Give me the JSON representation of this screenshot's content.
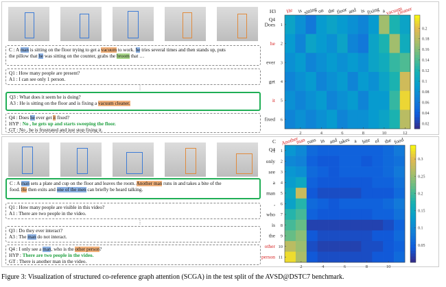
{
  "panels": [
    {
      "boxes": [
        {
          "highlight": false,
          "lines": [
            [
              {
                "text": "C : A "
              },
              {
                "text": "man",
                "style": "blue"
              },
              {
                "text": " is sitting on the floor trying to get a "
              },
              {
                "text": "vacuum",
                "style": "orange"
              },
              {
                "text": " to work. "
              },
              {
                "text": "he",
                "style": "blue"
              },
              {
                "text": " tries several times and then stands up, puts"
              }
            ],
            [
              {
                "text": "the pillow that "
              },
              {
                "text": "he",
                "style": "blue"
              },
              {
                "text": " was sitting on the counter, grabs the "
              },
              {
                "text": "broom",
                "style": "green"
              },
              {
                "text": " that …"
              }
            ]
          ]
        },
        {
          "highlight": false,
          "lines": [
            [
              {
                "text": "Q1 : How many people are present?"
              }
            ],
            [
              {
                "text": "A1 : I can see only 1 person."
              }
            ]
          ]
        },
        {
          "highlight": true,
          "lines": [
            [
              {
                "text": "Q3 : What does it seem he is doing?"
              }
            ],
            [
              {
                "text": "A3 : He is sitting on the floor and is fixing a "
              },
              {
                "text": "vacuum cleaner.",
                "style": "orange"
              }
            ]
          ]
        },
        {
          "highlight": false,
          "lines": [
            [
              {
                "text": "Q4 : Does "
              },
              {
                "text": "he",
                "style": "blue"
              },
              {
                "text": " ever get "
              },
              {
                "text": "it",
                "style": "orange"
              },
              {
                "text": " fixed?"
              }
            ],
            [
              {
                "text": "HYP : "
              },
              {
                "text": "No , he gets up and starts sweeping the floor.",
                "style": "green-bold"
              }
            ],
            [
              {
                "text": "GT : No , he is frustrated and just stop fixing it."
              }
            ]
          ]
        }
      ]
    },
    {
      "boxes": [
        {
          "highlight": true,
          "lines": [
            [
              {
                "text": "C : A "
              },
              {
                "text": "man",
                "style": "blue"
              },
              {
                "text": " sets a plate and cup on the floor and leaves the room. "
              },
              {
                "text": "Another man",
                "style": "orange"
              },
              {
                "text": " runs in and takes a bite of the"
              }
            ],
            [
              {
                "text": "food. "
              },
              {
                "text": "He",
                "style": "orange"
              },
              {
                "text": " then exits and "
              },
              {
                "text": "one of the men",
                "style": "blue"
              },
              {
                "text": " can briefly be heard talking."
              }
            ]
          ]
        },
        {
          "highlight": false,
          "lines": [
            [
              {
                "text": "Q1 : How many people are visible in this video?"
              }
            ],
            [
              {
                "text": "A1 : There are two people in the video."
              }
            ]
          ]
        },
        {
          "highlight": false,
          "lines": [
            [
              {
                "text": "Q3 : Do they ever interact?"
              }
            ],
            [
              {
                "text": "A3 : The "
              },
              {
                "text": "man",
                "style": "blue"
              },
              {
                "text": " do not interact."
              }
            ]
          ]
        },
        {
          "highlight": false,
          "lines": [
            [
              {
                "text": "Q4 : I only see a "
              },
              {
                "text": "man",
                "style": "blue"
              },
              {
                "text": ", who is the "
              },
              {
                "text": "other person",
                "style": "orange"
              },
              {
                "text": "?"
              }
            ],
            [
              {
                "text": "HYP : "
              },
              {
                "text": "There are two people in the video.",
                "style": "green-bold"
              }
            ],
            [
              {
                "text": "GT : There is another man in the video."
              }
            ]
          ]
        }
      ]
    }
  ],
  "chart_data": [
    {
      "type": "heatmap",
      "corner_label": "H3",
      "row_header": "Q4",
      "x_labels": [
        "He",
        "is",
        "sitting",
        "on",
        "the",
        "floor",
        "and",
        "is",
        "fixing",
        "a",
        "vacuum",
        "cleaner"
      ],
      "x_label_colors": [
        "#d62020",
        "#222",
        "#222",
        "#222",
        "#222",
        "#222",
        "#222",
        "#222",
        "#222",
        "#222",
        "#d62020",
        "#d62020"
      ],
      "y_labels": [
        "Does",
        "he",
        "ever",
        "get",
        "it",
        "fixed"
      ],
      "y_label_colors": [
        "#222",
        "#d62020",
        "#222",
        "#222",
        "#d62020",
        "#222"
      ],
      "xlim": [
        0.5,
        12.5
      ],
      "xticks": [
        2,
        4,
        6,
        8,
        10,
        12
      ],
      "ylim": [
        0.5,
        6.5
      ],
      "yticks": [
        1,
        2,
        3,
        4,
        5,
        6
      ],
      "zlim": [
        0.01,
        0.225
      ],
      "zticks": [
        0.02,
        0.04,
        0.06,
        0.08,
        0.1,
        0.12,
        0.14,
        0.16,
        0.18,
        0.2
      ],
      "values": [
        [
          0.1,
          0.08,
          0.06,
          0.09,
          0.1,
          0.09,
          0.08,
          0.07,
          0.09,
          0.17,
          0.12,
          0.1
        ],
        [
          0.09,
          0.07,
          0.1,
          0.09,
          0.08,
          0.1,
          0.07,
          0.06,
          0.1,
          0.12,
          0.17,
          0.11
        ],
        [
          0.08,
          0.09,
          0.07,
          0.08,
          0.09,
          0.08,
          0.09,
          0.08,
          0.1,
          0.11,
          0.13,
          0.14
        ],
        [
          0.07,
          0.08,
          0.09,
          0.07,
          0.08,
          0.09,
          0.07,
          0.09,
          0.08,
          0.1,
          0.12,
          0.19
        ],
        [
          0.08,
          0.07,
          0.08,
          0.09,
          0.07,
          0.08,
          0.09,
          0.07,
          0.09,
          0.09,
          0.13,
          0.21
        ],
        [
          0.07,
          0.08,
          0.07,
          0.08,
          0.09,
          0.07,
          0.08,
          0.08,
          0.09,
          0.1,
          0.12,
          0.18
        ]
      ]
    },
    {
      "type": "heatmap",
      "corner_label": "C",
      "row_header": "Q4",
      "x_labels": [
        "Another",
        "man",
        "runs",
        "in",
        "and",
        "takes",
        "a",
        "bite",
        "of",
        "the",
        "food"
      ],
      "x_label_colors": [
        "#d62020",
        "#d62020",
        "#222",
        "#222",
        "#222",
        "#222",
        "#222",
        "#222",
        "#222",
        "#222",
        "#222"
      ],
      "y_labels": [
        "I",
        "only",
        "see",
        "a",
        "man",
        ",",
        "who",
        "is",
        "the",
        "other",
        "person"
      ],
      "y_label_colors": [
        "#222",
        "#222",
        "#222",
        "#222",
        "#222",
        "#222",
        "#222",
        "#222",
        "#222",
        "#d62020",
        "#d62020"
      ],
      "xlim": [
        0.5,
        11.5
      ],
      "xticks": [
        2,
        4,
        6,
        8,
        10
      ],
      "ylim": [
        0.5,
        11.5
      ],
      "yticks": [
        1,
        2,
        3,
        4,
        5,
        6,
        7,
        8,
        9,
        10,
        11
      ],
      "zlim": [
        0,
        0.34
      ],
      "zticks": [
        0.05,
        0.1,
        0.15,
        0.2,
        0.25,
        0.3
      ],
      "values": [
        [
          0.12,
          0.1,
          0.06,
          0.05,
          0.05,
          0.05,
          0.05,
          0.05,
          0.05,
          0.06,
          0.08
        ],
        [
          0.1,
          0.09,
          0.05,
          0.04,
          0.04,
          0.05,
          0.05,
          0.04,
          0.05,
          0.06,
          0.07
        ],
        [
          0.12,
          0.11,
          0.06,
          0.05,
          0.04,
          0.05,
          0.05,
          0.05,
          0.05,
          0.06,
          0.08
        ],
        [
          0.13,
          0.15,
          0.05,
          0.04,
          0.04,
          0.04,
          0.04,
          0.04,
          0.05,
          0.05,
          0.07
        ],
        [
          0.15,
          0.28,
          0.04,
          0.03,
          0.03,
          0.03,
          0.03,
          0.04,
          0.04,
          0.04,
          0.06
        ],
        [
          0.14,
          0.18,
          0.06,
          0.05,
          0.04,
          0.05,
          0.05,
          0.05,
          0.05,
          0.06,
          0.08
        ],
        [
          0.18,
          0.2,
          0.05,
          0.04,
          0.04,
          0.04,
          0.04,
          0.04,
          0.05,
          0.05,
          0.07
        ],
        [
          0.2,
          0.22,
          0.02,
          0.02,
          0.02,
          0.02,
          0.02,
          0.02,
          0.02,
          0.03,
          0.05
        ],
        [
          0.22,
          0.24,
          0.04,
          0.03,
          0.03,
          0.03,
          0.03,
          0.03,
          0.04,
          0.04,
          0.06
        ],
        [
          0.27,
          0.25,
          0.03,
          0.02,
          0.02,
          0.02,
          0.02,
          0.03,
          0.03,
          0.04,
          0.05
        ],
        [
          0.32,
          0.26,
          0.04,
          0.03,
          0.03,
          0.03,
          0.03,
          0.03,
          0.04,
          0.04,
          0.06
        ]
      ]
    }
  ],
  "caption": "Figure 3: Visualization of structured co-reference graph attention (SCGA) in the test split of the AVSD@DSTC7 benchmark."
}
